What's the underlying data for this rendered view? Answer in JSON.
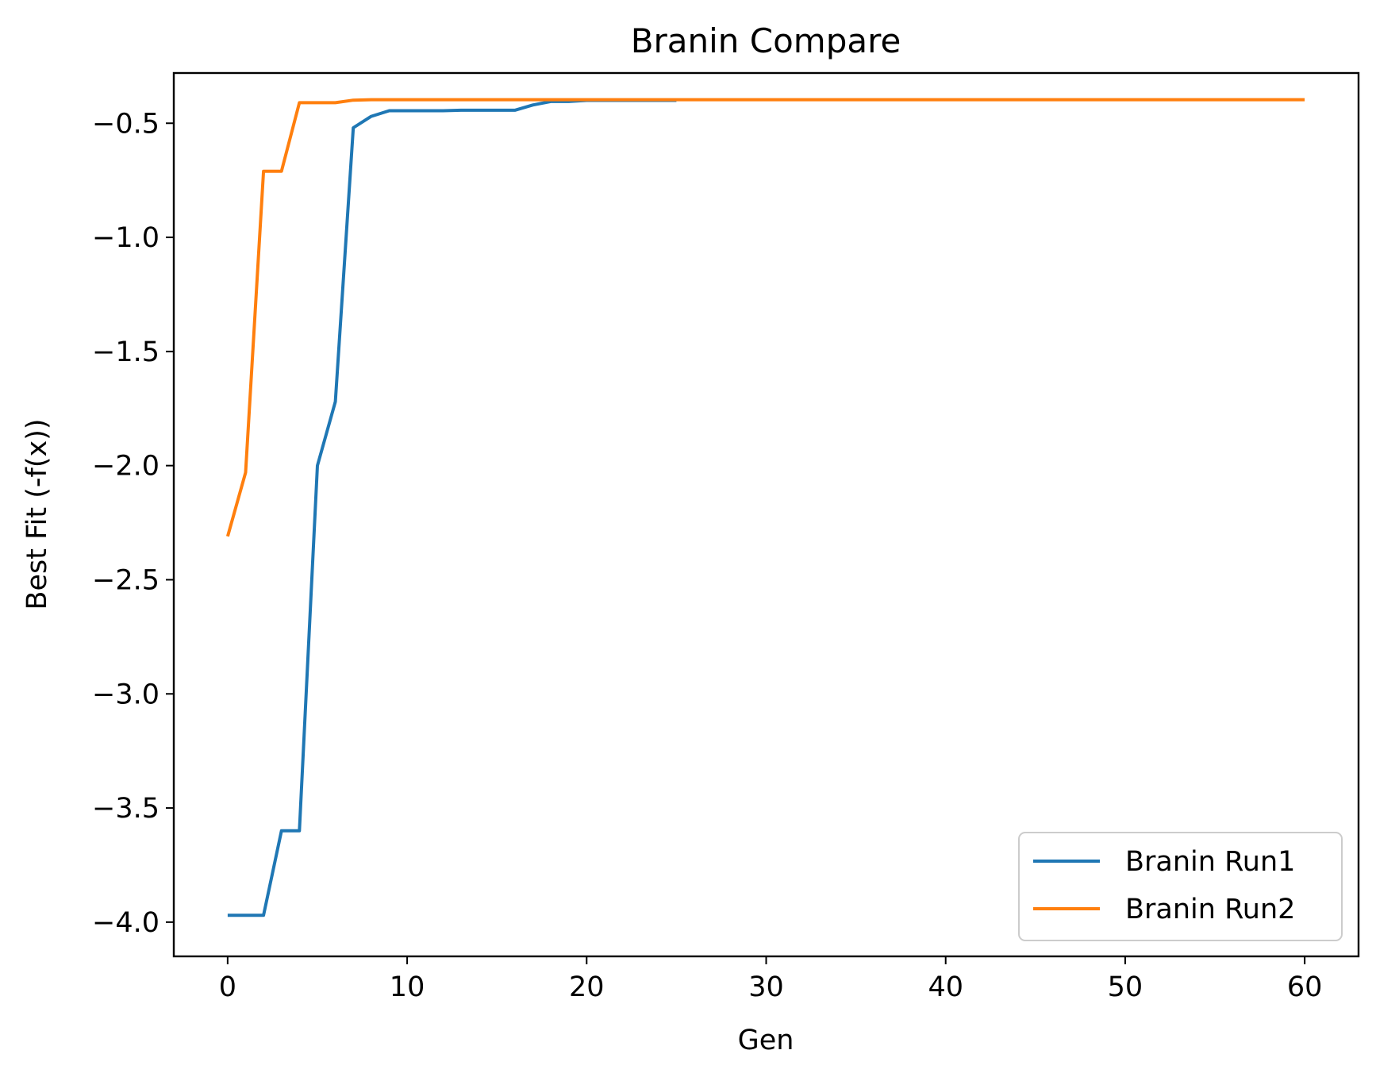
{
  "chart_data": {
    "type": "line",
    "title": "Branin Compare",
    "xlabel": "Gen",
    "ylabel": "Best Fit (-f(x))",
    "xlim": [
      -3,
      63
    ],
    "ylim": [
      -4.15,
      -0.28
    ],
    "xticks": [
      0,
      10,
      20,
      30,
      40,
      50,
      60
    ],
    "xtick_labels": [
      "0",
      "10",
      "20",
      "30",
      "40",
      "50",
      "60"
    ],
    "yticks": [
      -4.0,
      -3.5,
      -3.0,
      -2.5,
      -2.0,
      -1.5,
      -1.0,
      -0.5
    ],
    "ytick_labels": [
      "−4.0",
      "−3.5",
      "−3.0",
      "−2.5",
      "−2.0",
      "−1.5",
      "−1.0",
      "−0.5"
    ],
    "grid": false,
    "legend_position": "lower-right",
    "series": [
      {
        "name": "Branin Run1",
        "color": "#1f77b4",
        "x": [
          0,
          1,
          2,
          3,
          4,
          5,
          6,
          7,
          8,
          9,
          10,
          11,
          12,
          13,
          14,
          15,
          16,
          17,
          18,
          19,
          20,
          21,
          22,
          23,
          24,
          25
        ],
        "y": [
          -3.97,
          -3.97,
          -3.97,
          -3.6,
          -3.6,
          -2.0,
          -1.72,
          -0.52,
          -0.47,
          -0.445,
          -0.445,
          -0.445,
          -0.445,
          -0.443,
          -0.443,
          -0.443,
          -0.443,
          -0.42,
          -0.405,
          -0.405,
          -0.4,
          -0.4,
          -0.4,
          -0.4,
          -0.4,
          -0.4
        ]
      },
      {
        "name": "Branin Run2",
        "color": "#ff7f0e",
        "x": [
          0,
          1,
          2,
          3,
          4,
          5,
          6,
          7,
          8,
          9,
          10,
          15,
          20,
          25,
          30,
          35,
          40,
          45,
          50,
          55,
          60
        ],
        "y": [
          -2.31,
          -2.03,
          -0.71,
          -0.71,
          -0.41,
          -0.41,
          -0.41,
          -0.399,
          -0.397,
          -0.397,
          -0.397,
          -0.397,
          -0.397,
          -0.397,
          -0.397,
          -0.397,
          -0.397,
          -0.397,
          -0.397,
          -0.397,
          -0.397
        ]
      }
    ]
  }
}
